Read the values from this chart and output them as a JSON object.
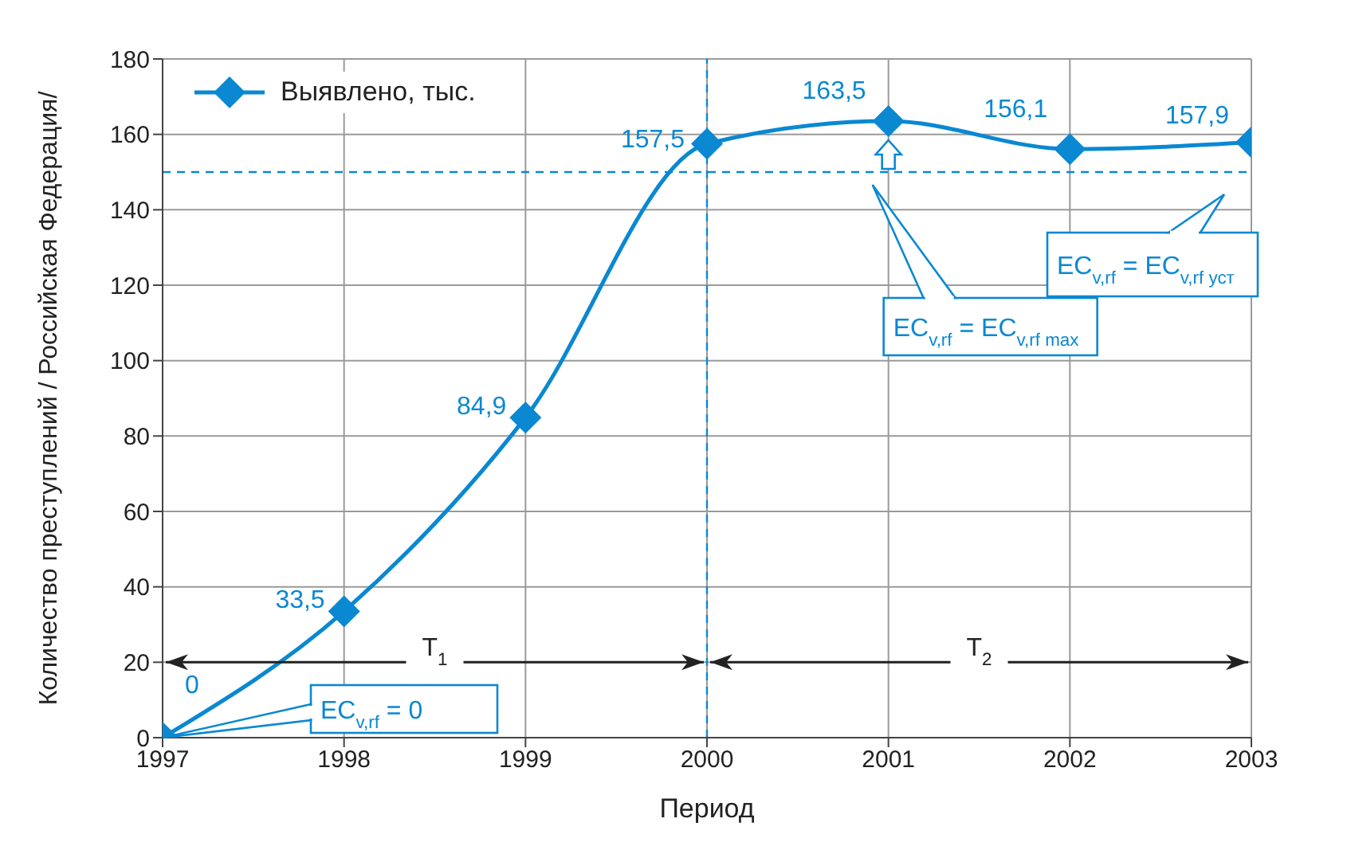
{
  "chart_data": {
    "type": "line",
    "xlabel": "Период",
    "ylabel": "Количество преступлений / Российская Федерация/",
    "x": [
      1997,
      1998,
      1999,
      2000,
      2001,
      2002,
      2003
    ],
    "series": [
      {
        "name": "Выявлено, тыс.",
        "color": "#0a88d2",
        "values": [
          0,
          33.5,
          84.9,
          157.5,
          163.5,
          156.1,
          157.9
        ],
        "value_labels": [
          "0",
          "33,5",
          "84,9",
          "157,5",
          "163,5",
          "156,1",
          "157,9"
        ]
      }
    ],
    "xlim": [
      1997,
      2003
    ],
    "xticks": [
      1997,
      1998,
      1999,
      2000,
      2001,
      2002,
      2003
    ],
    "ylim": [
      0,
      180
    ],
    "yticks": [
      0,
      20,
      40,
      60,
      80,
      100,
      120,
      140,
      160,
      180
    ],
    "grid": true,
    "legend": "top left",
    "marker": "diamond",
    "line_style": "solid",
    "ref_lines": [
      {
        "axis": "x",
        "value": 2000,
        "color": "#0a88d2",
        "line_style": "dashed"
      },
      {
        "axis": "y",
        "value": 150,
        "color": "#0a88d2",
        "line_style": "dashed"
      }
    ],
    "annotations": [
      "T$_{1}$",
      "T$_{2}$",
      {
        "text": "EC$_{v,rf}$ = 0",
        "x": 1997,
        "y": 0
      },
      "EC$_{v,rf}$ = EC$_{v,rf max}$",
      "EC$_{v,rf}$ = EC$_{v,rf уст}$"
    ]
  }
}
